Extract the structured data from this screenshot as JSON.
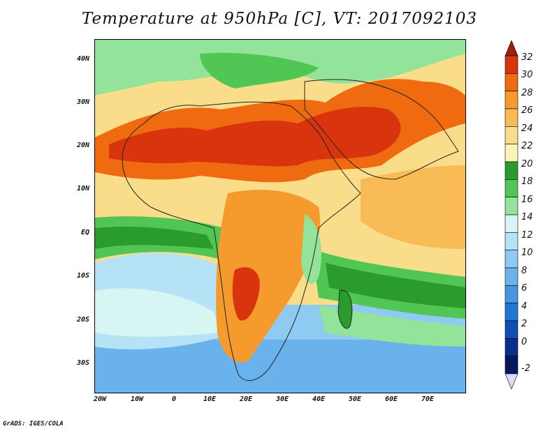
{
  "title": "Temperature at 950hPa [C], VT: 2017092103",
  "footer": "GrADS: IGES/COLA",
  "lat_labels": [
    "40N",
    "30N",
    "20N",
    "10N",
    "EQ",
    "10S",
    "20S",
    "30S"
  ],
  "lon_labels": [
    "20W",
    "10W",
    "0",
    "10E",
    "20E",
    "30E",
    "40E",
    "50E",
    "60E",
    "70E"
  ],
  "colorbar": {
    "labels": [
      "32",
      "30",
      "28",
      "26",
      "24",
      "22",
      "20",
      "18",
      "16",
      "14",
      "12",
      "10",
      "8",
      "6",
      "4",
      "2",
      "0",
      "-2"
    ],
    "colors": [
      "#a01e0c",
      "#d8350f",
      "#f06a10",
      "#f59a2c",
      "#f8bb55",
      "#fadd8a",
      "#fbf2b8",
      "#2a9c2e",
      "#52c655",
      "#94e39a",
      "#d7f5f2",
      "#b6e2f5",
      "#8fcaf2",
      "#69b2ec",
      "#4596e0",
      "#2475cf",
      "#0e4fb5",
      "#082f8c",
      "#06175f",
      "#e0d7fa"
    ]
  }
}
